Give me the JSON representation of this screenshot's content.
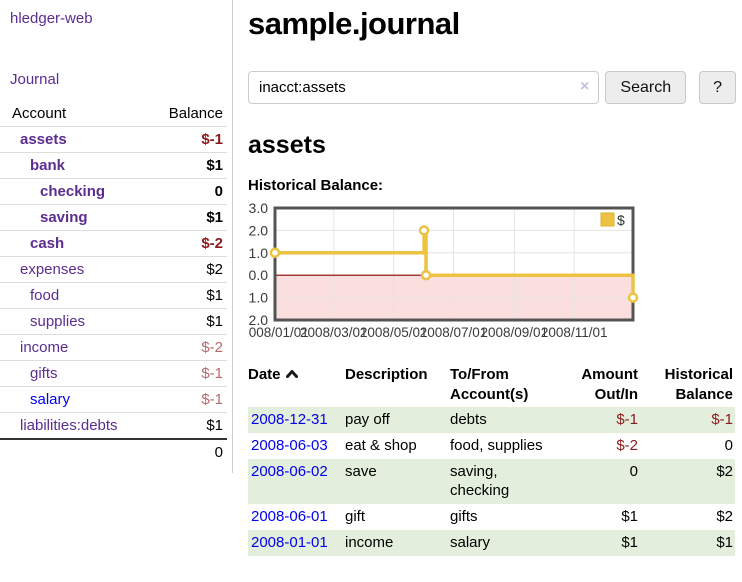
{
  "app": {
    "brand": "hledger-web"
  },
  "sidebar": {
    "journal_link": "Journal",
    "accounts_table": {
      "account_header": "Account",
      "balance_header": "Balance",
      "rows": [
        {
          "name": "assets",
          "depth": 1,
          "in_query": true,
          "balance": "$-1",
          "negative": "strong",
          "unvisited": false
        },
        {
          "name": "bank",
          "depth": 2,
          "in_query": true,
          "balance": "$1",
          "negative": "",
          "unvisited": false
        },
        {
          "name": "checking",
          "depth": 3,
          "in_query": true,
          "balance": "0",
          "negative": "",
          "unvisited": false
        },
        {
          "name": "saving",
          "depth": 3,
          "in_query": true,
          "balance": "$1",
          "negative": "",
          "unvisited": false
        },
        {
          "name": "cash",
          "depth": 2,
          "in_query": true,
          "balance": "$-2",
          "negative": "strong",
          "unvisited": false
        },
        {
          "name": "expenses",
          "depth": 1,
          "in_query": false,
          "balance": "$2",
          "negative": "",
          "unvisited": false
        },
        {
          "name": "food",
          "depth": 2,
          "in_query": false,
          "balance": "$1",
          "negative": "",
          "unvisited": false
        },
        {
          "name": "supplies",
          "depth": 2,
          "in_query": false,
          "balance": "$1",
          "negative": "",
          "unvisited": false
        },
        {
          "name": "income",
          "depth": 1,
          "in_query": false,
          "balance": "$-2",
          "negative": "soft",
          "unvisited": false
        },
        {
          "name": "gifts",
          "depth": 2,
          "in_query": false,
          "balance": "$-1",
          "negative": "soft",
          "unvisited": false
        },
        {
          "name": "salary",
          "depth": 2,
          "in_query": false,
          "balance": "$-1",
          "negative": "soft",
          "unvisited": true
        },
        {
          "name": "liabilities:debts",
          "depth": 1,
          "in_query": false,
          "balance": "$1",
          "negative": "",
          "unvisited": false
        }
      ],
      "total": "0"
    }
  },
  "main": {
    "title": "sample.journal",
    "search": {
      "value": "inacct:assets",
      "clear_icon": "×",
      "search_button": "Search",
      "help_button": "?"
    },
    "account_heading": "assets",
    "chart_title": "Historical Balance:"
  },
  "chart_data": {
    "type": "line",
    "step": true,
    "title": "Historical Balance:",
    "series": [
      {
        "name": "$",
        "color": "#edc240",
        "points": [
          [
            "2008-01-01",
            1
          ],
          [
            "2008-06-01",
            2
          ],
          [
            "2008-06-03",
            0
          ],
          [
            "2008-12-31",
            -1
          ]
        ]
      }
    ],
    "x_range": [
      "2008-01-01",
      "2008-12-31"
    ],
    "x_tick_dates": [
      "2008-01-01",
      "2008-03-01",
      "2008-05-01",
      "2008-07-01",
      "2008-09-01",
      "2008-11-01"
    ],
    "x_tick_labels": [
      "2008/01/01",
      "2008/03/01",
      "2008/05/01",
      "2008/07/01",
      "2008/09/01",
      "2008/11/01"
    ],
    "y_ticks": [
      3.0,
      2.0,
      1.0,
      0.0,
      -1.0,
      -2.0
    ],
    "y_range": [
      -2,
      3
    ],
    "grid": true,
    "legend_position": "top-right",
    "negative_region_color": "#fbdede",
    "zero_line_color": "#8b0000",
    "border_color": "#545454",
    "grid_color": "#e4e4e4"
  },
  "register": {
    "columns": [
      {
        "label": "Date",
        "sort": "ascending",
        "align": "left"
      },
      {
        "label": "Description",
        "align": "left"
      },
      {
        "label": "To/From\nAccount(s)",
        "align": "left"
      },
      {
        "label": "Amount\nOut/In",
        "align": "right"
      },
      {
        "label": "Historical\nBalance",
        "align": "right"
      }
    ],
    "rows": [
      {
        "date": "2008-12-31",
        "description": "pay off",
        "to_from": "debts",
        "amount": "$-1",
        "amount_negative": true,
        "balance": "$-1",
        "balance_negative": true,
        "highlight": true
      },
      {
        "date": "2008-06-03",
        "description": "eat & shop",
        "to_from": "food, supplies",
        "amount": "$-2",
        "amount_negative": true,
        "balance": "0",
        "balance_negative": false,
        "highlight": false
      },
      {
        "date": "2008-06-02",
        "description": "save",
        "to_from": "saving,\nchecking",
        "amount": "0",
        "amount_negative": false,
        "balance": "$2",
        "balance_negative": false,
        "highlight": true
      },
      {
        "date": "2008-06-01",
        "description": "gift",
        "to_from": "gifts",
        "amount": "$1",
        "amount_negative": false,
        "balance": "$2",
        "balance_negative": false,
        "highlight": false
      },
      {
        "date": "2008-01-01",
        "description": "income",
        "to_from": "salary",
        "amount": "$1",
        "amount_negative": false,
        "balance": "$1",
        "balance_negative": false,
        "highlight": true
      }
    ]
  },
  "colors": {
    "link_purple": "#5c2d91",
    "link_blue": "#0000ee",
    "negative_strong": "#8b1a1a",
    "negative_soft": "#b36b6b",
    "row_stripe_green": "#e3eedd",
    "chart_gold": "#edc240"
  }
}
